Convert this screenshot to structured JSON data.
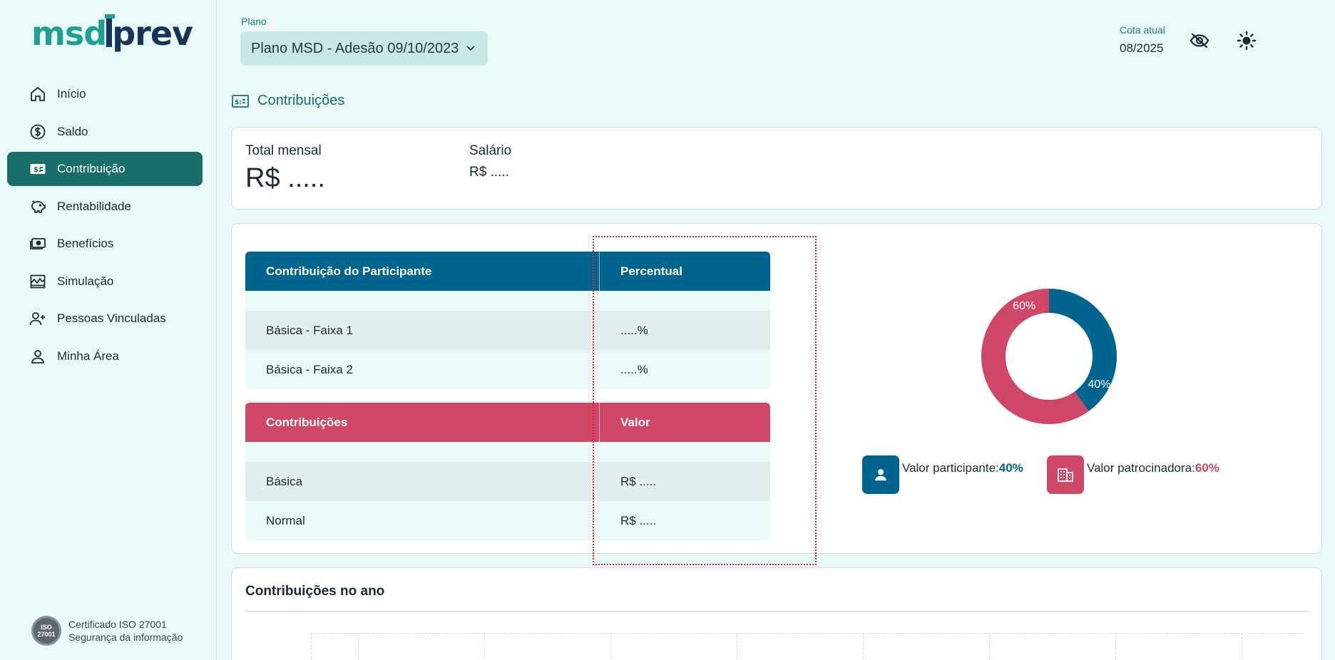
{
  "brand": {
    "logo_left": "msd",
    "logo_right": "prev"
  },
  "sidebar": {
    "items": [
      {
        "label": "Início",
        "icon": "home-icon"
      },
      {
        "label": "Saldo",
        "icon": "dollar-circle-icon"
      },
      {
        "label": "Contribuição",
        "icon": "money-bill-icon",
        "active": true
      },
      {
        "label": "Rentabilidade",
        "icon": "piggy-bank-icon"
      },
      {
        "label": "Benefícios",
        "icon": "cash-stack-icon"
      },
      {
        "label": "Simulação",
        "icon": "chart-line-icon"
      },
      {
        "label": "Pessoas Vinculadas",
        "icon": "user-plus-icon"
      },
      {
        "label": "Minha Área",
        "icon": "user-icon"
      }
    ],
    "certificate": {
      "seal": "ISO 27001",
      "line1": "Certificado ISO 27001",
      "line2": "Segurança da informação"
    }
  },
  "header": {
    "plano_label": "Plano",
    "plano_value": "Plano MSD - Adesão 09/10/2023",
    "cota_label": "Cota atual",
    "cota_value": "08/2025"
  },
  "page": {
    "title": "Contribuições"
  },
  "summary": {
    "total_label": "Total mensal",
    "total_value": "R$ .....",
    "salario_label": "Salário",
    "salario_value": "R$ ....."
  },
  "participant_table": {
    "headers": [
      "Contribuição do Participante",
      "Percentual"
    ],
    "rows": [
      [
        "Básica - Faixa 1",
        ".....%"
      ],
      [
        "Básica - Faixa 2",
        ".....%"
      ]
    ]
  },
  "contrib_table": {
    "headers": [
      "Contribuições",
      "Valor"
    ],
    "rows": [
      [
        "Básica",
        "R$ ....."
      ],
      [
        "Normal",
        "R$ ....."
      ]
    ]
  },
  "chart_data": {
    "type": "pie",
    "title": "",
    "categories": [
      "Valor participante",
      "Valor patrocinadora"
    ],
    "values": [
      40,
      60
    ],
    "labels": [
      "40%",
      "60%"
    ],
    "colors": [
      "#00658e",
      "#d04868"
    ],
    "donut": true
  },
  "legend": {
    "participante_label": "Valor participante:",
    "participante_pct": "40%",
    "patrocinadora_label": "Valor patrocinadora:",
    "patrocinadora_pct": "60%"
  },
  "yearly": {
    "title": "Contribuições no ano"
  },
  "colors": {
    "accent": "#1b6f6a",
    "blue": "#00658e",
    "pink": "#d04868",
    "bg": "#eafaf9"
  }
}
